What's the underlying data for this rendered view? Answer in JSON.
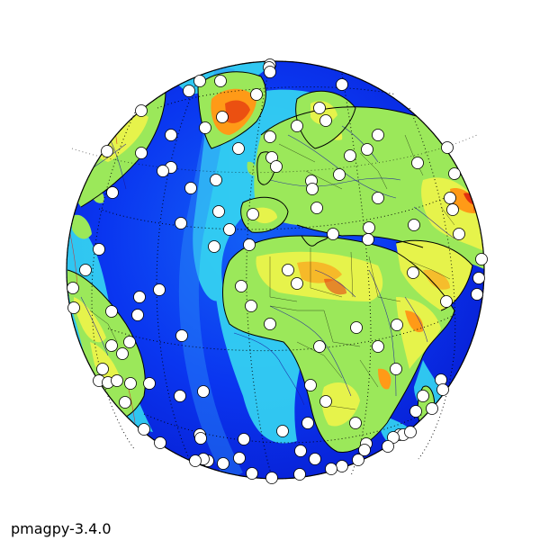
{
  "figure": {
    "watermark": "pmagpy-3.4.0",
    "projection": "orthographic",
    "colormap": "jet",
    "features": [
      "coastlines",
      "country-borders",
      "rivers",
      "graticule"
    ]
  },
  "colors": {
    "ocean_deep": "#0a2cf0",
    "ocean_mid": "#1f7cf7",
    "shelf": "#35d7f2",
    "lowland": "#9be85a",
    "upland": "#e6f34b",
    "highland": "#ff9a17",
    "peak": "#e23110",
    "marker_fill": "#ffffff",
    "marker_edge": "#000000",
    "graticule": "#000000",
    "rivers": "#1a1a9f"
  },
  "markers_count": 126
}
